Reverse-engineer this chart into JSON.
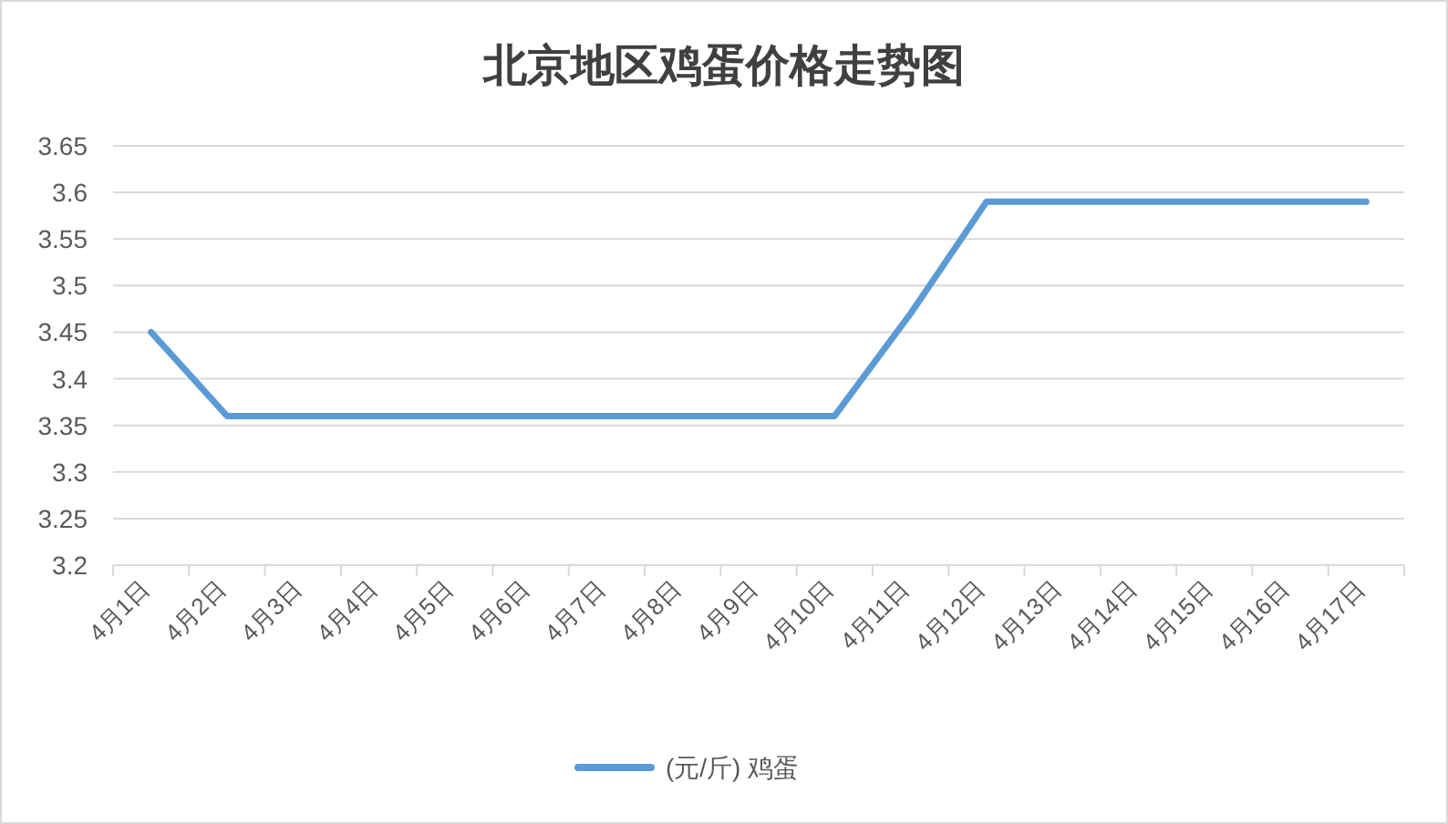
{
  "chart_data": {
    "type": "line",
    "title": "北京地区鸡蛋价格走势图",
    "categories": [
      "4月1日",
      "4月2日",
      "4月3日",
      "4月4日",
      "4月5日",
      "4月6日",
      "4月7日",
      "4月8日",
      "4月9日",
      "4月10日",
      "4月11日",
      "4月12日",
      "4月13日",
      "4月14日",
      "4月15日",
      "4月16日",
      "4月17日"
    ],
    "series": [
      {
        "name": "(元/斤) 鸡蛋",
        "color": "#5b9bd5",
        "values": [
          3.45,
          3.36,
          3.36,
          3.36,
          3.36,
          3.36,
          3.36,
          3.36,
          3.36,
          3.36,
          3.47,
          3.59,
          3.59,
          3.59,
          3.59,
          3.59,
          3.59
        ]
      }
    ],
    "ylim": [
      3.2,
      3.65
    ],
    "yticks": [
      3.2,
      3.25,
      3.3,
      3.35,
      3.4,
      3.45,
      3.5,
      3.55,
      3.6,
      3.65
    ],
    "grid": "y",
    "legend": "bottom"
  }
}
